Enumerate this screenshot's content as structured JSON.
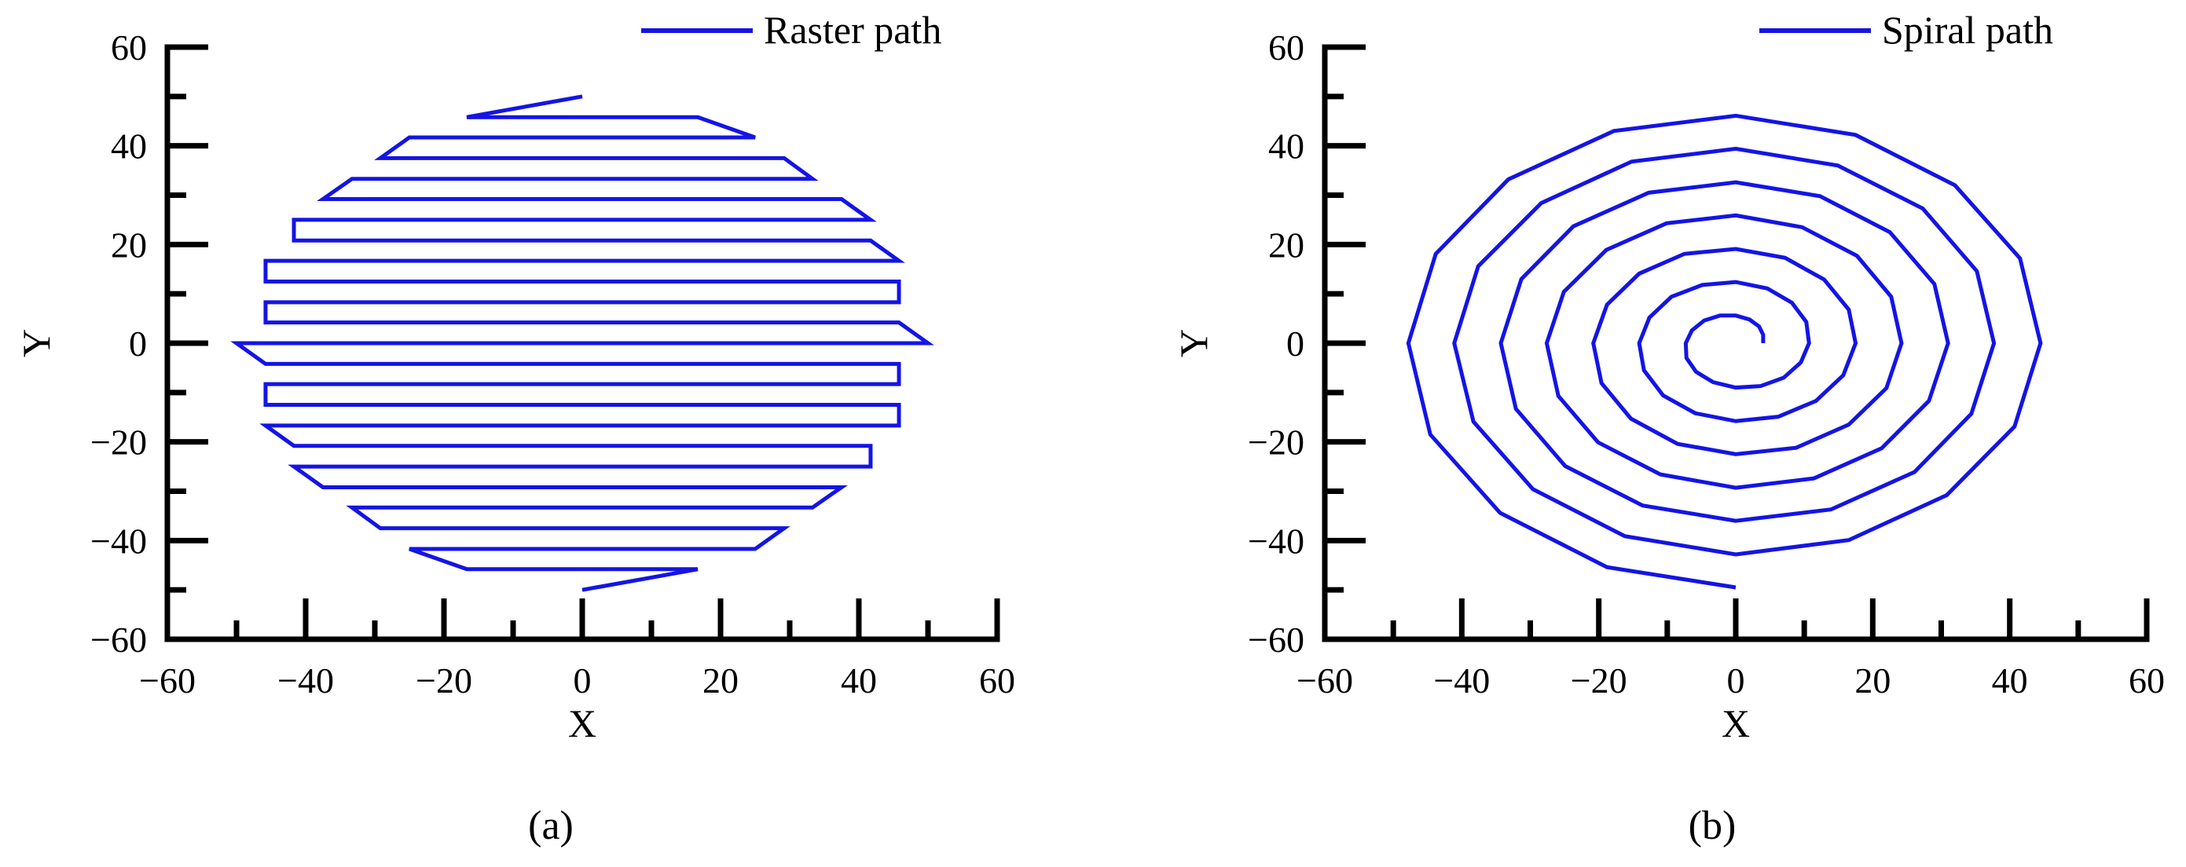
{
  "chart_data": [
    {
      "type": "line",
      "xlabel": "X",
      "ylabel": "Y",
      "caption": "(a)",
      "xlim": [
        -60,
        60
      ],
      "ylim": [
        -60,
        60
      ],
      "xticks": [
        {
          "value": -60,
          "label": "−60"
        },
        {
          "value": -40,
          "label": "−40"
        },
        {
          "value": -20,
          "label": "−20"
        },
        0,
        20,
        40,
        60
      ],
      "yticks": [
        {
          "value": -60,
          "label": "−60"
        },
        {
          "value": -40,
          "label": "−40"
        },
        {
          "value": -20,
          "label": "−20"
        },
        0,
        20,
        40,
        60
      ],
      "series": [
        {
          "name": "Raster path",
          "color": "#1414e6",
          "x": [
            0,
            -16.7,
            16.7,
            25,
            -25,
            -29.2,
            29.2,
            33.3,
            -33.3,
            -37.5,
            37.5,
            41.7,
            -41.7,
            -41.7,
            41.7,
            45.8,
            -45.8,
            -45.8,
            45.8,
            45.8,
            -45.8,
            -45.8,
            45.8,
            50,
            -50,
            -45.8,
            45.8,
            45.8,
            -45.8,
            -45.8,
            45.8,
            45.8,
            -45.8,
            -41.7,
            41.7,
            41.7,
            -41.7,
            -37.5,
            37.5,
            33.3,
            -33.3,
            -29.2,
            29.2,
            25,
            -25,
            -16.7,
            16.7,
            0
          ],
          "y": [
            50,
            45.8,
            45.8,
            41.7,
            41.7,
            37.5,
            37.5,
            33.3,
            33.3,
            29.2,
            29.2,
            25,
            25,
            20.8,
            20.8,
            16.7,
            16.7,
            12.5,
            12.5,
            8.3,
            8.3,
            4.2,
            4.2,
            0,
            0,
            -4.2,
            -4.2,
            -8.3,
            -8.3,
            -12.5,
            -12.5,
            -16.7,
            -16.7,
            -20.8,
            -20.8,
            -25,
            -25,
            -29.2,
            -29.2,
            -33.3,
            -33.3,
            -37.5,
            -37.5,
            -41.7,
            -41.7,
            -45.8,
            -45.8,
            -50
          ]
        }
      ]
    },
    {
      "type": "line",
      "xlabel": "X",
      "ylabel": "Y",
      "caption": "(b)",
      "xlim": [
        -60,
        60
      ],
      "ylim": [
        -60,
        60
      ],
      "xticks": [
        {
          "value": -60,
          "label": "−60"
        },
        {
          "value": -40,
          "label": "−40"
        },
        {
          "value": -20,
          "label": "−20"
        },
        0,
        20,
        40,
        60
      ],
      "yticks": [
        {
          "value": -60,
          "label": "−60"
        },
        {
          "value": -40,
          "label": "−40"
        },
        {
          "value": -20,
          "label": "−20"
        },
        0,
        20,
        40,
        60
      ],
      "series": [
        {
          "name": "Spiral path",
          "color": "#1414e6",
          "x": [
            4.0,
            4.0,
            3.4,
            2.0,
            0,
            -2.3,
            -4.6,
            -6.4,
            -7.3,
            -7.2,
            -5.8,
            -3.3,
            0,
            3.6,
            7.0,
            9.5,
            10.7,
            10.3,
            8.2,
            4.6,
            0,
            -4.9,
            -9.4,
            -12.6,
            -14.1,
            -13.4,
            -10.6,
            -5.9,
            0,
            6.2,
            11.7,
            15.7,
            17.5,
            16.5,
            12.9,
            7.2,
            0,
            -7.5,
            -14.1,
            -18.8,
            -20.8,
            -19.6,
            -15.3,
            -8.5,
            0,
            8.8,
            16.5,
            22.0,
            24.2,
            22.7,
            17.7,
            9.7,
            0,
            -10.1,
            -18.9,
            -25.1,
            -27.6,
            -25.9,
            -20.1,
            -11.0,
            0,
            11.4,
            21.3,
            28.2,
            31.0,
            29.0,
            22.5,
            12.3,
            0,
            -12.7,
            -23.7,
            -31.3,
            -34.3,
            -32.1,
            -24.9,
            -13.6,
            0,
            13.9,
            26.1,
            34.4,
            37.7,
            35.2,
            27.3,
            14.9,
            0,
            -15.2,
            -28.4,
            -37.6,
            -41.1,
            -38.3,
            -29.6,
            -16.2,
            0,
            16.5,
            30.8,
            40.7,
            44.5,
            41.5,
            32.0,
            17.5,
            0,
            -17.8,
            -33.2,
            -43.8,
            -47.8,
            -44.6,
            -34.4,
            -18.8,
            0
          ],
          "y": [
            0,
            1.7,
            3.4,
            4.8,
            5.6,
            5.6,
            4.6,
            2.6,
            0,
            -3.0,
            -5.8,
            -7.9,
            -9.0,
            -8.7,
            -7.0,
            -3.9,
            0,
            4.3,
            8.2,
            11.1,
            12.4,
            11.8,
            9.4,
            5.2,
            0,
            -5.5,
            -10.6,
            -14.2,
            -15.8,
            -14.9,
            -11.7,
            -6.5,
            0,
            6.8,
            12.9,
            17.3,
            19.1,
            18.1,
            14.1,
            7.8,
            0,
            -8.1,
            -15.3,
            -20.4,
            -22.5,
            -21.2,
            -16.5,
            -9.1,
            0,
            9.4,
            17.7,
            23.5,
            25.9,
            24.3,
            18.9,
            10.4,
            0,
            -10.7,
            -20.1,
            -26.6,
            -29.3,
            -27.4,
            -21.3,
            -11.7,
            0,
            12.0,
            22.5,
            29.8,
            32.6,
            30.5,
            23.7,
            13.0,
            0,
            -13.3,
            -24.9,
            -32.9,
            -36.0,
            -33.7,
            -26.1,
            -14.3,
            0,
            14.6,
            27.3,
            36.0,
            39.4,
            36.8,
            28.4,
            15.6,
            0,
            -15.9,
            -29.6,
            -39.1,
            -42.8,
            -39.9,
            -30.8,
            -16.9,
            0,
            17.2,
            32.0,
            42.2,
            46.1,
            43.0,
            33.2,
            18.1,
            0,
            -18.5,
            -34.4,
            -45.4,
            -49.5
          ]
        }
      ]
    }
  ]
}
